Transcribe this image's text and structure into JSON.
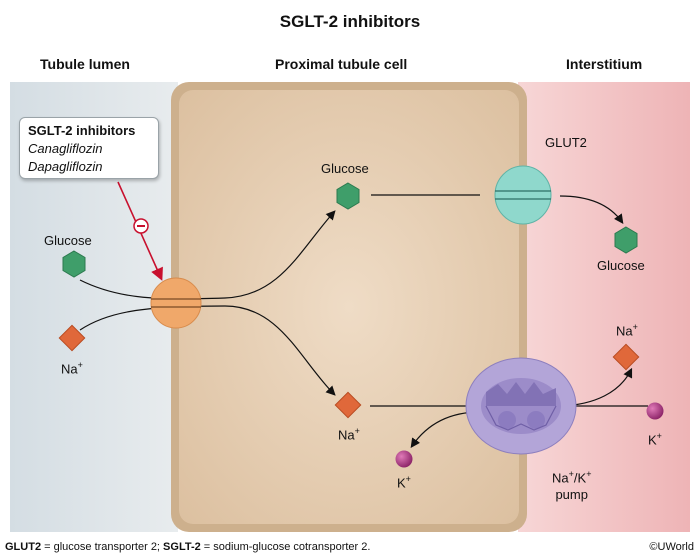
{
  "title": "SGLT-2 inhibitors",
  "regions": {
    "lumen": "Tubule lumen",
    "cell": "Proximal tubule cell",
    "interstitium": "Interstitium"
  },
  "callout": {
    "heading": "SGLT-2 inhibitors",
    "drug1": "Canagliflozin",
    "drug2": "Dapagliflozin"
  },
  "labels": {
    "lumen_glucose": "Glucose",
    "lumen_na": "Na",
    "cell_glucose": "Glucose",
    "cell_na": "Na",
    "cell_k": "K",
    "glut2": "GLUT2",
    "int_glucose": "Glucose",
    "int_na": "Na",
    "int_k": "K",
    "pump_line1": "Na",
    "pump_mid": "/K",
    "pump_line2": "pump"
  },
  "footnote": {
    "glut2_term": "GLUT2",
    "glut2_def": " = glucose transporter 2; ",
    "sglt2_term": "SGLT-2",
    "sglt2_def": " = sodium-glucose cotransporter 2."
  },
  "copyright": "©UWorld",
  "colors": {
    "lumen_bg": "#dde3e7",
    "interstitium_bg": "#f3c6c6",
    "cell_fill": "#e9d2b8",
    "glucose": "#3f9e6a",
    "sodium": "#e0683a",
    "potassium": "#a0347a",
    "sglt2": "#f0a86a",
    "glut2": "#8fd8cc",
    "pump": "#b3a5d8",
    "inhibit": "#c8102e"
  }
}
